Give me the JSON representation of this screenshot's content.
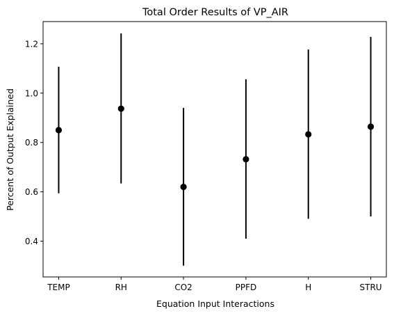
{
  "chart_data": {
    "type": "scatter",
    "title": "Total Order Results of VP_AIR",
    "xlabel": "Equation Input Interactions",
    "ylabel": "Percent of Output Explained",
    "categories": [
      "TEMP",
      "RH",
      "CO2",
      "PPFD",
      "H",
      "STRU"
    ],
    "values": [
      0.85,
      0.937,
      0.62,
      0.732,
      0.833,
      0.864
    ],
    "error_low": [
      0.594,
      0.634,
      0.301,
      0.41,
      0.491,
      0.5
    ],
    "error_high": [
      1.107,
      1.242,
      0.94,
      1.056,
      1.177,
      1.228
    ],
    "yticks": [
      0.4,
      0.6,
      0.8,
      1.0,
      1.2
    ],
    "ytick_labels": [
      "0.4",
      "0.6",
      "0.8",
      "1.0",
      "1.2"
    ],
    "ylim": [
      0.255,
      1.29
    ],
    "grid": false,
    "legend": "none",
    "marker_color": "#000000"
  }
}
